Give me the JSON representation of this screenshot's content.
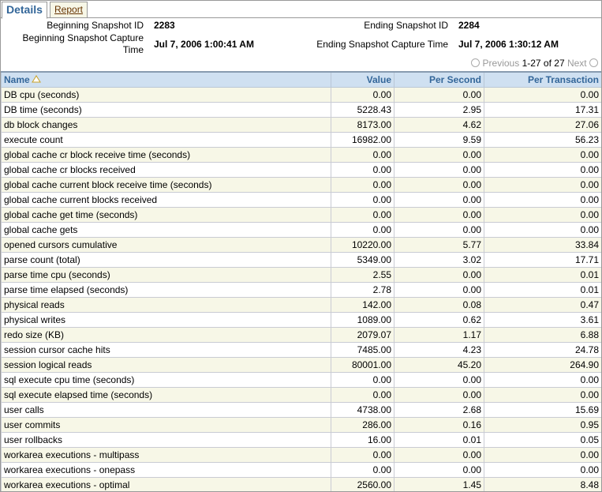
{
  "tabs": [
    "Details",
    "Report"
  ],
  "header": {
    "begin_id_label": "Beginning Snapshot ID",
    "begin_id": "2283",
    "end_id_label": "Ending Snapshot ID",
    "end_id": "2284",
    "begin_time_label": "Beginning Snapshot Capture Time",
    "begin_time": "Jul 7, 2006 1:00:41 AM",
    "end_time_label": "Ending Snapshot Capture Time",
    "end_time": "Jul 7, 2006 1:30:12 AM"
  },
  "pagination": {
    "previous": "Previous",
    "range": "1-27 of 27",
    "next": "Next"
  },
  "table": {
    "columns": [
      "Name",
      "Value",
      "Per Second",
      "Per Transaction"
    ],
    "rows": [
      [
        "DB cpu (seconds)",
        "0.00",
        "0.00",
        "0.00"
      ],
      [
        "DB time (seconds)",
        "5228.43",
        "2.95",
        "17.31"
      ],
      [
        "db block changes",
        "8173.00",
        "4.62",
        "27.06"
      ],
      [
        "execute count",
        "16982.00",
        "9.59",
        "56.23"
      ],
      [
        "global cache cr block receive time (seconds)",
        "0.00",
        "0.00",
        "0.00"
      ],
      [
        "global cache cr blocks received",
        "0.00",
        "0.00",
        "0.00"
      ],
      [
        "global cache current block receive time (seconds)",
        "0.00",
        "0.00",
        "0.00"
      ],
      [
        "global cache current blocks received",
        "0.00",
        "0.00",
        "0.00"
      ],
      [
        "global cache get time (seconds)",
        "0.00",
        "0.00",
        "0.00"
      ],
      [
        "global cache gets",
        "0.00",
        "0.00",
        "0.00"
      ],
      [
        "opened cursors cumulative",
        "10220.00",
        "5.77",
        "33.84"
      ],
      [
        "parse count (total)",
        "5349.00",
        "3.02",
        "17.71"
      ],
      [
        "parse time cpu (seconds)",
        "2.55",
        "0.00",
        "0.01"
      ],
      [
        "parse time elapsed (seconds)",
        "2.78",
        "0.00",
        "0.01"
      ],
      [
        "physical reads",
        "142.00",
        "0.08",
        "0.47"
      ],
      [
        "physical writes",
        "1089.00",
        "0.62",
        "3.61"
      ],
      [
        "redo size (KB)",
        "2079.07",
        "1.17",
        "6.88"
      ],
      [
        "session cursor cache hits",
        "7485.00",
        "4.23",
        "24.78"
      ],
      [
        "session logical reads",
        "80001.00",
        "45.20",
        "264.90"
      ],
      [
        "sql execute cpu time (seconds)",
        "0.00",
        "0.00",
        "0.00"
      ],
      [
        "sql execute elapsed time (seconds)",
        "0.00",
        "0.00",
        "0.00"
      ],
      [
        "user calls",
        "4738.00",
        "2.68",
        "15.69"
      ],
      [
        "user commits",
        "286.00",
        "0.16",
        "0.95"
      ],
      [
        "user rollbacks",
        "16.00",
        "0.01",
        "0.05"
      ],
      [
        "workarea executions - multipass",
        "0.00",
        "0.00",
        "0.00"
      ],
      [
        "workarea executions - onepass",
        "0.00",
        "0.00",
        "0.00"
      ],
      [
        "workarea executions - optimal",
        "2560.00",
        "1.45",
        "8.48"
      ]
    ]
  }
}
